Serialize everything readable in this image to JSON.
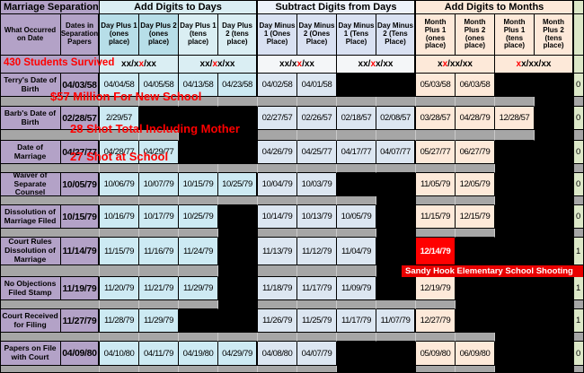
{
  "groups": [
    {
      "label": "Marriage Separation"
    },
    {
      "label": "Add Digits to Days"
    },
    {
      "label": "Subtract Digits from Days"
    },
    {
      "label": "Add Digits to Months"
    }
  ],
  "columns": [
    "What Occurred on Date",
    "Dates in Separation Papers",
    "Day Plus 1 (ones place)",
    "Day Plus 2 (ones place)",
    "Day Plus 1 (tens place)",
    "Day Plus 2 (tens place)",
    "Day Minus 1 (Ones Place)",
    "Day Minus 2 (Ones Place)",
    "Day Minus 1 (Tens Place)",
    "Day Minus 2 (Tens Place)",
    "Month Plus 1 (ones place)",
    "Month Plus 2 (ones place)",
    "Month Plus 1 (tens place)",
    "Month Plus 2 (tens place)"
  ],
  "mask_row": {
    "patterns": [
      {
        "pre": "xx/x",
        "red": "x",
        "post": "/xx"
      },
      {
        "pre": "xx/",
        "red": "x",
        "post": "x/xx"
      },
      {
        "pre": "xx/x",
        "red": "x",
        "post": "/xx"
      },
      {
        "pre": "xx/",
        "red": "x",
        "post": "x/xx"
      },
      {
        "pre": "x",
        "red": "x",
        "post": "/xx/xx"
      },
      {
        "pre": "",
        "red": "x",
        "post": "x/xx/xx"
      }
    ]
  },
  "rows": [
    {
      "label": "Terry's Date of Birth",
      "date": "04/03/58",
      "edge": "0",
      "cells": [
        "04/04/58",
        "04/05/58",
        "04/13/58",
        "04/23/58",
        "04/02/58",
        "04/01/58",
        "",
        "",
        "05/03/58",
        "06/03/58",
        "",
        ""
      ]
    },
    {
      "label": "Barb's Date of Birth",
      "date": "02/28/57",
      "edge": "0",
      "cells": [
        "2/29/57",
        "",
        "",
        "",
        "02/27/57",
        "02/26/57",
        "02/18/57",
        "02/08/57",
        "03/28/57",
        "04/28/79",
        "12/28/57",
        ""
      ]
    },
    {
      "label": "Date of Marriage",
      "date": "04/27/77",
      "edge": "0",
      "cells": [
        "04/28/77",
        "04/29/77",
        "",
        "",
        "04/26/79",
        "04/25/77",
        "04/17/77",
        "04/07/77",
        "05/27/77",
        "06/27/79",
        "",
        ""
      ]
    },
    {
      "label": "Waiver of Separate Counsel",
      "date": "10/05/79",
      "edge": "0",
      "cells": [
        "10/06/79",
        "10/07/79",
        "10/15/79",
        "10/25/79",
        "10/04/79",
        "10/03/79",
        "",
        "",
        "11/05/79",
        "12/05/79",
        "",
        ""
      ]
    },
    {
      "label": "Dissolution of Marriage Filed",
      "date": "10/15/79",
      "edge": "0",
      "cells": [
        "10/16/79",
        "10/17/79",
        "10/25/79",
        "",
        "10/14/79",
        "10/13/79",
        "10/05/79",
        "",
        "11/15/79",
        "12/15/79",
        "",
        ""
      ]
    },
    {
      "label": "Court Rules Dissolution of Marriage",
      "date": "11/14/79",
      "edge": "1",
      "highlight_col": 8,
      "cells": [
        "11/15/79",
        "11/16/79",
        "11/24/79",
        "",
        "11/13/79",
        "11/12/79",
        "11/04/79",
        "",
        "12/14/79",
        "",
        "",
        ""
      ]
    },
    {
      "label": "No Objections Filed Stamp",
      "date": "11/19/79",
      "edge": "1",
      "cells": [
        "11/20/79",
        "11/21/79",
        "11/29/79",
        "",
        "11/18/79",
        "11/17/79",
        "11/09/79",
        "",
        "12/19/79",
        "",
        "",
        ""
      ]
    },
    {
      "label": "Court Received for Filing",
      "date": "11/27/79",
      "edge": "1",
      "cells": [
        "11/28/79",
        "11/29/79",
        "",
        "",
        "11/26/79",
        "11/25/79",
        "11/17/79",
        "11/07/79",
        "12/27/79",
        "",
        "",
        ""
      ]
    },
    {
      "label": "Papers on File with Court",
      "date": "04/09/80",
      "edge": "0",
      "cells": [
        "04/10/80",
        "04/11/79",
        "04/19/80",
        "04/29/79",
        "04/08/80",
        "04/07/79",
        "",
        "",
        "05/09/80",
        "06/09/80",
        "",
        ""
      ]
    }
  ],
  "annotations": {
    "students_survived": "430 Students Survived",
    "million_new_school": "$57 Million For New School",
    "shot_total": "28 Shot Total Including Mother",
    "shot_at_school": "27 Shot at School",
    "sandy_hook_banner": "Sandy Hook Elementary School Shooting"
  },
  "colors": {
    "purple_header": "#B3A2C7",
    "add_days_bg": "#CDEAF3",
    "subtract_days_bg": "#DCE6F1",
    "add_months_bg": "#FDE9D9",
    "redaction_black": "#000000",
    "highlight_red": "#FF0000",
    "annotation_red": "#FF0000",
    "spacer_gray": "#A6A6A6",
    "edge_green": "#DCE8C8"
  }
}
